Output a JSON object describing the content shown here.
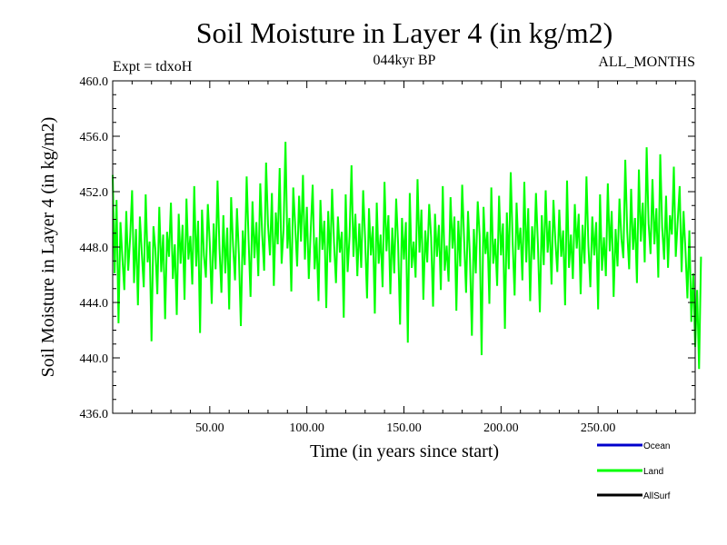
{
  "chart_data": {
    "type": "line",
    "title": "Soil Moisture in Layer 4 (in kg/m2)",
    "subtitle_left": "Expt = tdxoH",
    "subtitle_center": "044kyr BP",
    "subtitle_right": "ALL_MONTHS",
    "xlabel": "Time (in years since start)",
    "ylabel": "Soil Moisture in Layer 4 (in kg/m2)",
    "xlim": [
      0,
      300
    ],
    "ylim": [
      436,
      460
    ],
    "x_ticks": [
      {
        "value": 50,
        "label": "50.00"
      },
      {
        "value": 100,
        "label": "100.00"
      },
      {
        "value": 150,
        "label": "150.00"
      },
      {
        "value": 200,
        "label": "200.00"
      },
      {
        "value": 250,
        "label": "250.00"
      }
    ],
    "y_ticks": [
      {
        "value": 436,
        "label": "436.0"
      },
      {
        "value": 440,
        "label": "440.0"
      },
      {
        "value": 444,
        "label": "444.0"
      },
      {
        "value": 448,
        "label": "448.0"
      },
      {
        "value": 452,
        "label": "452.0"
      },
      {
        "value": 456,
        "label": "456.0"
      },
      {
        "value": 460,
        "label": "460.0"
      }
    ],
    "series": [
      {
        "name": "Ocean",
        "color": "#0000cc",
        "values": []
      },
      {
        "name": "Land",
        "color": "#00ff00",
        "x_start": 0,
        "x_step": 1,
        "values": [
          453.2,
          446.1,
          451.4,
          442.5,
          449.8,
          447.2,
          444.9,
          450.6,
          446.3,
          448.7,
          452.1,
          445.4,
          449.3,
          443.8,
          450.2,
          447.6,
          445.1,
          451.8,
          446.9,
          448.4,
          441.2,
          449.5,
          447.8,
          444.6,
          450.9,
          446.2,
          448.9,
          442.8,
          449.1,
          447.3,
          451.2,
          445.7,
          448.2,
          443.1,
          450.4,
          446.8,
          449.6,
          444.2,
          451.5,
          447.1,
          448.8,
          445.3,
          452.4,
          446.6,
          449.9,
          441.8,
          450.7,
          447.4,
          445.8,
          451.1,
          448.3,
          443.9,
          449.7,
          446.4,
          452.8,
          447.9,
          444.7,
          450.3,
          446.1,
          449.4,
          443.5,
          451.6,
          448.1,
          445.6,
          450.8,
          447.5,
          442.3,
          449.2,
          446.7,
          453.1,
          448.5,
          444.4,
          451.3,
          447.2,
          449.8,
          445.9,
          452.6,
          448.9,
          446.3,
          454.1,
          449.6,
          447.4,
          451.9,
          445.2,
          450.5,
          448.2,
          453.7,
          446.8,
          449.3,
          455.6,
          447.9,
          450.1,
          444.8,
          452.3,
          449.5,
          446.6,
          451.7,
          448.4,
          453.2,
          447.1,
          450.9,
          445.7,
          449.2,
          452.5,
          446.4,
          448.7,
          444.1,
          451.4,
          447.8,
          449.9,
          443.6,
          450.6,
          446.9,
          452.2,
          448.3,
          445.4,
          450.2,
          447.6,
          449.1,
          442.9,
          451.8,
          446.2,
          448.8,
          453.9,
          447.3,
          450.4,
          445.9,
          449.7,
          446.5,
          452.1,
          448.6,
          444.3,
          450.8,
          447.4,
          449.5,
          443.2,
          451.2,
          446.8,
          448.9,
          445.1,
          452.7,
          447.7,
          450.3,
          444.6,
          449.4,
          446.1,
          451.5,
          448.2,
          442.4,
          450.1,
          447.1,
          449.8,
          441.1,
          451.9,
          446.5,
          448.4,
          445.8,
          452.9,
          447.6,
          450.7,
          444.2,
          449.2,
          446.9,
          451.1,
          448.7,
          443.7,
          450.4,
          447.3,
          449.6,
          444.9,
          452.4,
          446.3,
          448.1,
          445.5,
          451.6,
          447.9,
          450.2,
          443.4,
          449.9,
          446.6,
          452.5,
          448.5,
          444.7,
          450.6,
          447.2,
          441.6,
          449.3,
          446.1,
          451.3,
          448.8,
          440.2,
          450.9,
          447.5,
          449.1,
          443.9,
          452.3,
          446.8,
          448.6,
          445.2,
          451.7,
          447.4,
          449.7,
          442.1,
          450.5,
          446.4,
          453.4,
          448.3,
          444.5,
          451.2,
          447.8,
          449.4,
          445.6,
          452.7,
          446.9,
          450.8,
          444.1,
          449.5,
          447.1,
          451.9,
          448.2,
          443.3,
          450.3,
          446.7,
          452.1,
          447.6,
          449.9,
          445.3,
          451.4,
          448.4,
          446.2,
          450.7,
          447.3,
          449.2,
          443.8,
          452.8,
          446.5,
          448.9,
          445.7,
          451.1,
          447.9,
          450.4,
          444.6,
          449.6,
          446.8,
          453.1,
          448.1,
          445.1,
          450.2,
          447.4,
          449.8,
          443.5,
          451.8,
          446.3,
          448.7,
          445.9,
          452.6,
          447.7,
          450.6,
          444.4,
          449.3,
          446.6,
          451.5,
          448.6,
          447.2,
          454.3,
          449.1,
          446.4,
          452.2,
          447.8,
          450.1,
          445.4,
          453.6,
          448.4,
          451.2,
          446.9,
          455.2,
          449.7,
          447.5,
          452.9,
          448.2,
          450.8,
          445.8,
          454.7,
          449.4,
          447.1,
          451.7,
          446.5,
          450.3,
          448.9,
          453.8,
          447.3,
          449.9,
          452.4,
          446.2,
          450.6,
          447.7,
          444.3,
          449.2,
          442.6,
          446.1,
          440.8,
          444.9,
          439.2,
          447.3
        ]
      },
      {
        "name": "AllSurf",
        "color": "#000000",
        "values": []
      }
    ],
    "legend_placement": "bottom-right",
    "grid": false
  }
}
